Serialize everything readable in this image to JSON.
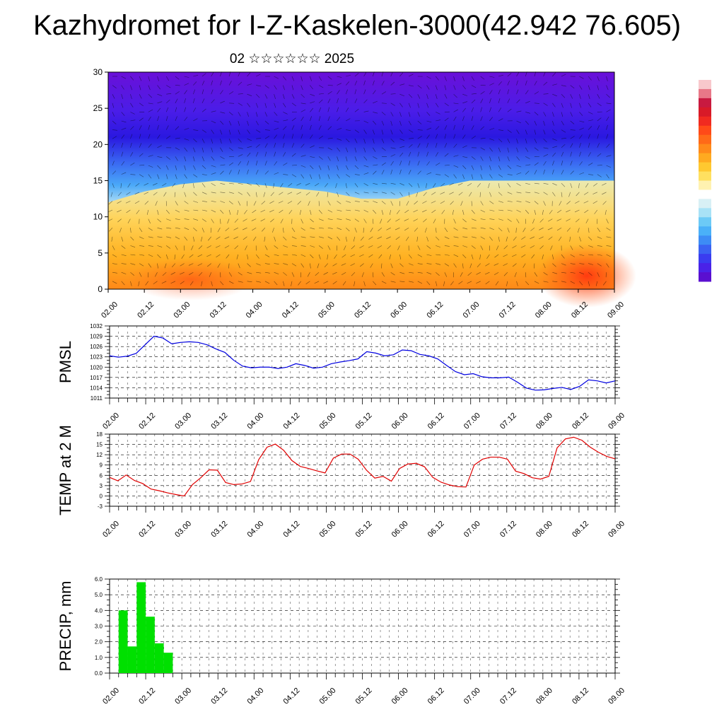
{
  "title": "Kazhydromet for I-Z-Kaskelen-3000(42.942 76.605)",
  "subtitle": "02 ☆☆☆☆☆☆ 2025",
  "time_labels": [
    "02.00",
    "02.12",
    "03.00",
    "03.12",
    "04.00",
    "04.12",
    "05.00",
    "05.12",
    "06.00",
    "06.12",
    "07.00",
    "07.12",
    "08.00",
    "08.12",
    "09.00"
  ],
  "colorbar": {
    "colors": [
      "#5a0fd0",
      "#4a22e8",
      "#3a3cf0",
      "#3a62f2",
      "#3d8cf5",
      "#4ab0f8",
      "#6ccaf6",
      "#a8e2f6",
      "#d8f0f5",
      "#ffffff",
      "#fff2b0",
      "#ffe060",
      "#ffc830",
      "#ffaa20",
      "#ff8a1a",
      "#ff6a18",
      "#ff4a18",
      "#f02a20",
      "#d81a28",
      "#c81a40",
      "#e87888",
      "#f8c8cc"
    ]
  },
  "chart_data": [
    {
      "type": "heatmap",
      "x": [
        "02.00",
        "02.12",
        "03.00",
        "03.12",
        "04.00",
        "04.12",
        "05.00",
        "05.12",
        "06.00",
        "06.12",
        "07.00",
        "07.12",
        "08.00",
        "08.12",
        "09.00"
      ],
      "ylim": [
        0,
        30
      ],
      "yticks": [
        0,
        5,
        10,
        15,
        20,
        25,
        30
      ],
      "warm_layer_top": [
        12,
        13.5,
        14.5,
        15,
        14.5,
        14,
        13.5,
        12.5,
        12.5,
        14,
        15,
        15,
        15,
        15,
        15
      ]
    },
    {
      "type": "line",
      "ylabel": "PMSL",
      "ylim": [
        1011,
        1032
      ],
      "yticks": [
        1011,
        1014,
        1017,
        1020,
        1023,
        1026,
        1029,
        1032
      ],
      "color": "#0000e0",
      "x_range": [
        0,
        14
      ],
      "values": [
        1023.3,
        1022.9,
        1023.2,
        1024.0,
        1026.5,
        1029.0,
        1028.5,
        1026.8,
        1027.2,
        1027.4,
        1027.2,
        1026.5,
        1025.3,
        1024.3,
        1022.0,
        1020.3,
        1019.8,
        1020.0,
        1020.0,
        1019.6,
        1020.0,
        1021.0,
        1020.5,
        1019.7,
        1020.0,
        1021.0,
        1021.5,
        1021.9,
        1022.4,
        1024.5,
        1024.1,
        1023.3,
        1023.6,
        1025.0,
        1024.8,
        1023.7,
        1023.3,
        1022.4,
        1020.5,
        1018.7,
        1017.8,
        1018.1,
        1017.2,
        1016.9,
        1016.9,
        1017.1,
        1015.6,
        1013.9,
        1013.3,
        1013.4,
        1013.8,
        1014.1,
        1013.5,
        1014.4,
        1016.3,
        1016.0,
        1015.4,
        1016.0
      ]
    },
    {
      "type": "line",
      "ylabel": "TEMP at 2 M",
      "ylim": [
        -3,
        18
      ],
      "yticks": [
        -3,
        0,
        3,
        6,
        9,
        12,
        15,
        18
      ],
      "color": "#e00000",
      "x_range": [
        0,
        14
      ],
      "values": [
        5.4,
        4.4,
        6.1,
        4.5,
        3.6,
        2.0,
        1.5,
        0.9,
        0.4,
        0.0,
        3.3,
        5.3,
        7.6,
        7.5,
        3.9,
        3.3,
        3.5,
        4.2,
        10.6,
        14.2,
        15.1,
        13.3,
        10.3,
        8.6,
        8.0,
        7.3,
        6.7,
        11.0,
        12.2,
        12.2,
        10.7,
        7.5,
        5.2,
        5.7,
        4.3,
        8.0,
        9.3,
        9.5,
        8.5,
        5.4,
        4.0,
        3.2,
        2.7,
        2.6,
        9.0,
        10.7,
        11.3,
        11.3,
        10.7,
        7.2,
        6.5,
        5.3,
        4.9,
        5.7,
        14.0,
        16.6,
        17.1,
        16.2,
        14.2,
        12.7,
        11.5,
        10.8
      ]
    },
    {
      "type": "bar",
      "ylabel": "PRECIP, mm",
      "ylim": [
        0,
        6
      ],
      "yticks": [
        0,
        1,
        2,
        3,
        4,
        5,
        6
      ],
      "ytick_labels": [
        "0.0",
        "1.0",
        "2.0",
        "3.0",
        "4.0",
        "5.0",
        "6.0"
      ],
      "color": "#00e000",
      "bar_x": [
        0.25,
        0.5,
        0.75,
        1.0,
        1.25,
        1.5
      ],
      "bar_width": 0.25,
      "values": [
        4.0,
        1.7,
        5.8,
        3.6,
        1.9,
        1.3
      ]
    }
  ]
}
